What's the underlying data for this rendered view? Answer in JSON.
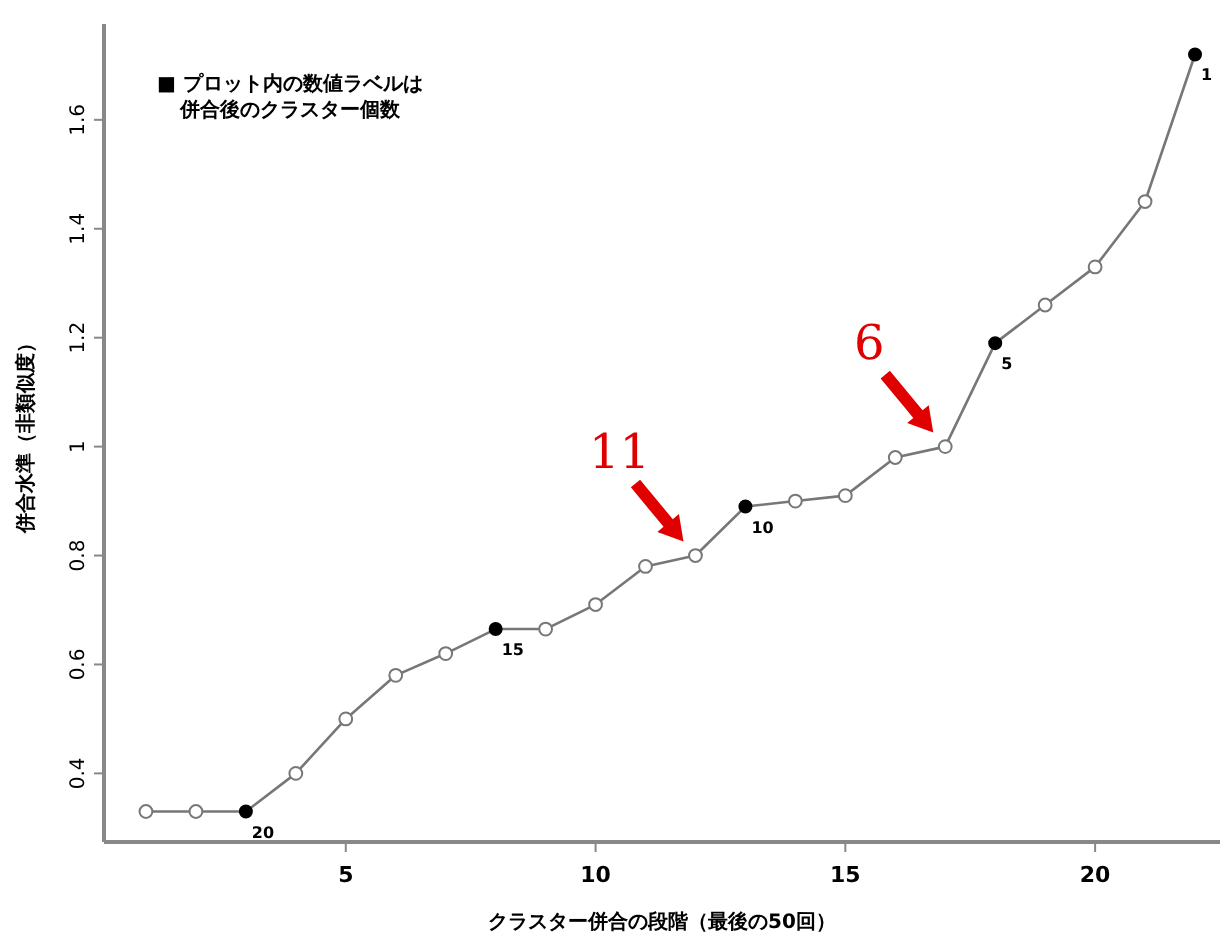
{
  "chart_data": {
    "type": "line",
    "xlabel": "クラスター併合の段階（最後の50回）",
    "ylabel": "併合水準（非類似度）",
    "x": [
      1,
      2,
      3,
      4,
      5,
      6,
      7,
      8,
      9,
      10,
      11,
      12,
      13,
      14,
      15,
      16,
      17,
      18,
      19,
      20,
      21,
      22
    ],
    "series": [
      {
        "color": "#777777",
        "marker": "circle",
        "values": [
          0.33,
          0.33,
          0.33,
          0.4,
          0.5,
          0.58,
          0.62,
          0.665,
          0.665,
          0.71,
          0.78,
          0.8,
          0.89,
          0.9,
          0.91,
          0.98,
          1.0,
          1.19,
          1.26,
          1.33,
          1.45,
          1.72
        ],
        "colors": [
          "#777777",
          "#777777",
          "#000000",
          "#777777",
          "#777777",
          "#777777",
          "#777777",
          "#000000",
          "#777777",
          "#777777",
          "#777777",
          "#777777",
          "#000000",
          "#777777",
          "#777777",
          "#777777",
          "#777777",
          "#000000",
          "#777777",
          "#777777",
          "#777777",
          "#000000"
        ]
      }
    ],
    "xlim": [
      0.16,
      22.5
    ],
    "ylim": [
      0.274,
      1.776
    ],
    "xticks": [
      5,
      10,
      15,
      20
    ],
    "yticks": [
      0.4,
      0.6,
      0.8,
      1.0,
      1.2,
      1.4,
      1.6
    ],
    "grid": false,
    "line_style": "solid",
    "annotations": [
      "■ プロット内の数値ラベルは",
      "併合後のクラスター個数",
      {
        "text": "20",
        "x": 3,
        "y": 0.33
      },
      {
        "text": "15",
        "x": 8,
        "y": 0.665
      },
      {
        "text": "10",
        "x": 13,
        "y": 0.89
      },
      {
        "text": "5",
        "x": 18,
        "y": 1.19
      },
      {
        "text": "1",
        "x": 22,
        "y": 1.72
      },
      {
        "text": "11",
        "x": 12,
        "y": 0.8
      },
      {
        "text": "6",
        "x": 17,
        "y": 1.0
      }
    ]
  }
}
